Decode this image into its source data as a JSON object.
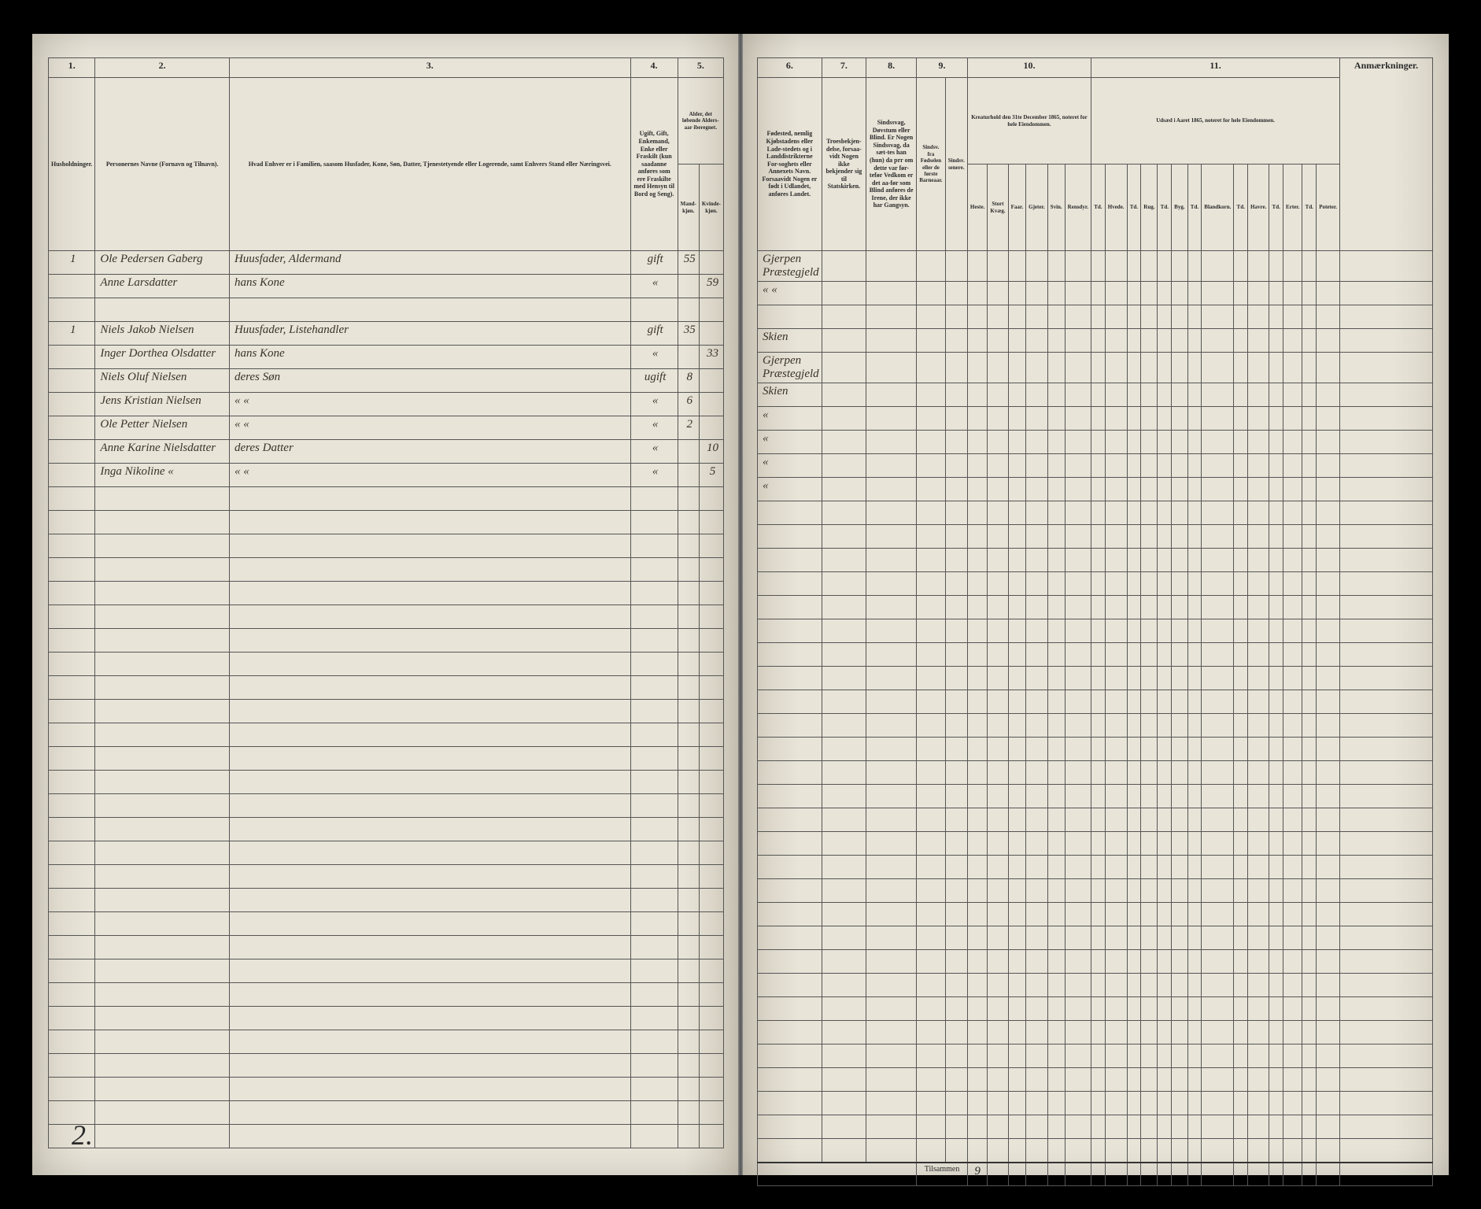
{
  "page_number": "2.",
  "left": {
    "columns": {
      "c1": "1.",
      "c2": "2.",
      "c3": "3.",
      "c4": "4.",
      "c5": "5."
    },
    "headers": {
      "h1": "Husholdninger.",
      "h2": "Personernes Navne (Fornavn og Tilnavn).",
      "h3": "Hvad Enhver er i Familien, saasom Husfader, Kone, Søn, Datter, Tjenestetyende eller Logerende, samt Enhvers Stand eller Næringsvei.",
      "h4": "Ugift, Gift, Enkemand, Enke eller Fraskilt (kun saadanne anføres som ere Fraskilte med Hensyn til Bord og Seng).",
      "h5": "Alder, det løbende Alders-aar iberegnet.",
      "h5a": "Mand-kjøn.",
      "h5b": "Kvinde-kjøn."
    },
    "rows": [
      {
        "hh": "1",
        "name": "Ole Pedersen Gaberg",
        "role": "Huusfader, Aldermand",
        "marital": "gift",
        "male_age": "55",
        "female_age": ""
      },
      {
        "hh": "",
        "name": "Anne Larsdatter",
        "role": "hans Kone",
        "marital": "«",
        "male_age": "",
        "female_age": "59"
      },
      {
        "hh": "",
        "name": "",
        "role": "",
        "marital": "",
        "male_age": "",
        "female_age": ""
      },
      {
        "hh": "1",
        "name": "Niels Jakob Nielsen",
        "role": "Huusfader, Listehandler",
        "marital": "gift",
        "male_age": "35",
        "female_age": ""
      },
      {
        "hh": "",
        "name": "Inger Dorthea Olsdatter",
        "role": "hans Kone",
        "marital": "«",
        "male_age": "",
        "female_age": "33"
      },
      {
        "hh": "",
        "name": "Niels Oluf Nielsen",
        "role": "deres Søn",
        "marital": "ugift",
        "male_age": "8",
        "female_age": ""
      },
      {
        "hh": "",
        "name": "Jens Kristian Nielsen",
        "role": "«   «",
        "marital": "«",
        "male_age": "6",
        "female_age": ""
      },
      {
        "hh": "",
        "name": "Ole Petter Nielsen",
        "role": "«   «",
        "marital": "«",
        "male_age": "2",
        "female_age": ""
      },
      {
        "hh": "",
        "name": "Anne Karine Nielsdatter",
        "role": "deres Datter",
        "marital": "«",
        "male_age": "",
        "female_age": "10"
      },
      {
        "hh": "",
        "name": "Inga Nikoline   «",
        "role": "«   «",
        "marital": "«",
        "male_age": "",
        "female_age": "5"
      }
    ]
  },
  "right": {
    "columns": {
      "c6": "6.",
      "c7": "7.",
      "c8": "8.",
      "c9": "9.",
      "c10": "10.",
      "c11": "11."
    },
    "headers": {
      "h6": "Fødested, nemlig Kjøbstadens eller Lade-stedets og i Landdistrikterne For-soghets eller Annexets Navn. Forsaavidt Nogen er født i Udlandet, anføres Landet.",
      "h7": "Troesbekjen-delse, forsaa-vidt Nogen ikke bekjender sig til Statskirken.",
      "h8": "Sindssvag, Døvstum eller Blind. Er Nogen Sindssvag, da sæt-tes han (hun) da prr om dette var før-tefør Vedkom er det aa-før som Blind anføres de Irene, der ikke har Gangsyn.",
      "h9a": "Sindsv. fra Fødselen eller de første Barneaar.",
      "h9b": "Sindsv. senere.",
      "h10": "Kreaturhold den 31te December 1865, noteret for hele Eiendommen.",
      "h10_sub": [
        "Heste.",
        "Stort Kvæg.",
        "Faar.",
        "Gjeter.",
        "Svin.",
        "Rensdyr."
      ],
      "h11": "Udsæd i Aaret 1865, noteret for hele Eiendommen.",
      "h11_sub": [
        "Hvede.",
        "Rug.",
        "Byg.",
        "Blandkorn.",
        "Havre.",
        "Erter.",
        "Poteter."
      ],
      "h_rem": "Anmærkninger."
    },
    "rows": [
      {
        "birthplace": "Gjerpen Præstegjeld"
      },
      {
        "birthplace": "«   «"
      },
      {
        "birthplace": ""
      },
      {
        "birthplace": "Skien"
      },
      {
        "birthplace": "Gjerpen Præstegjeld"
      },
      {
        "birthplace": "Skien"
      },
      {
        "birthplace": "«"
      },
      {
        "birthplace": "«"
      },
      {
        "birthplace": "«"
      },
      {
        "birthplace": "«"
      }
    ],
    "footer": {
      "label": "Tilsammen",
      "total": "9"
    }
  },
  "colors": {
    "paper": "#e8e4d8",
    "ink": "#2a2a2a",
    "script": "#3a3228",
    "rule": "#555555"
  },
  "empty_row_count": 28
}
